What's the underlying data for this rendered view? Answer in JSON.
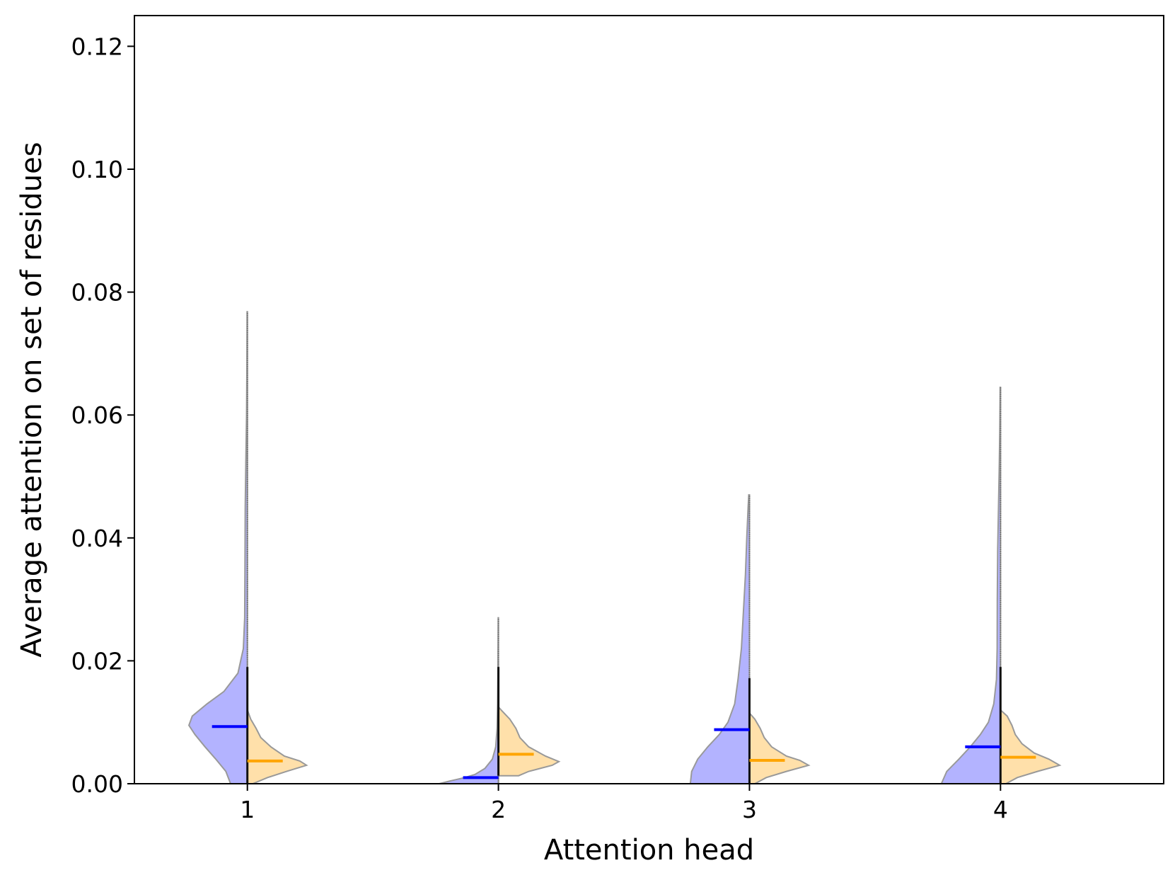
{
  "chart_data": {
    "type": "violin",
    "title": "",
    "xlabel": "Attention head",
    "ylabel": "Average attention on set of residues",
    "categories": [
      "1",
      "2",
      "3",
      "4"
    ],
    "ylim": [
      0,
      0.125
    ],
    "yticks": [
      "0.00",
      "0.02",
      "0.04",
      "0.06",
      "0.08",
      "0.10",
      "0.12"
    ],
    "grid": false,
    "legend": "none",
    "colors": {
      "left_fill": "#b3b3ff",
      "right_fill": "#ffe0aa",
      "left_median": "#0000ff",
      "right_median": "#ffa500",
      "outline": "#999999",
      "whisker": "#111111"
    },
    "violins": [
      {
        "category": "1",
        "left": {
          "min": 0.0,
          "max": 0.0768,
          "median": 0.0093,
          "profile": [
            [
              0.0,
              0.25
            ],
            [
              0.002,
              0.32
            ],
            [
              0.004,
              0.47
            ],
            [
              0.006,
              0.63
            ],
            [
              0.008,
              0.78
            ],
            [
              0.0095,
              0.87
            ],
            [
              0.011,
              0.82
            ],
            [
              0.013,
              0.6
            ],
            [
              0.015,
              0.35
            ],
            [
              0.018,
              0.14
            ],
            [
              0.022,
              0.06
            ],
            [
              0.027,
              0.04
            ],
            [
              0.035,
              0.036
            ],
            [
              0.045,
              0.032
            ],
            [
              0.053,
              0.022
            ],
            [
              0.06,
              0.012
            ],
            [
              0.068,
              0.007
            ],
            [
              0.0768,
              0.004
            ]
          ]
        },
        "right": {
          "min": 0.0,
          "max": 0.012,
          "median": 0.0037,
          "profile": [
            [
              0.0,
              0.08
            ],
            [
              0.001,
              0.3
            ],
            [
              0.002,
              0.58
            ],
            [
              0.003,
              0.88
            ],
            [
              0.0037,
              0.78
            ],
            [
              0.0045,
              0.55
            ],
            [
              0.006,
              0.35
            ],
            [
              0.0075,
              0.2
            ],
            [
              0.009,
              0.13
            ],
            [
              0.0105,
              0.05
            ],
            [
              0.012,
              0.0
            ]
          ]
        },
        "whisker": [
          0.0,
          0.019
        ]
      },
      {
        "category": "2",
        "left": {
          "min": 0.0,
          "max": 0.027,
          "median": 0.001,
          "profile": [
            [
              0.0,
              0.88
            ],
            [
              0.0005,
              0.7
            ],
            [
              0.001,
              0.5
            ],
            [
              0.0015,
              0.35
            ],
            [
              0.0025,
              0.2
            ],
            [
              0.004,
              0.09
            ],
            [
              0.006,
              0.04
            ],
            [
              0.009,
              0.02
            ],
            [
              0.013,
              0.012
            ],
            [
              0.018,
              0.008
            ],
            [
              0.023,
              0.005
            ],
            [
              0.027,
              0.003
            ]
          ]
        },
        "right": {
          "min": 0.0013,
          "max": 0.0125,
          "median": 0.0048,
          "profile": [
            [
              0.0013,
              0.3
            ],
            [
              0.002,
              0.45
            ],
            [
              0.003,
              0.8
            ],
            [
              0.0036,
              0.9
            ],
            [
              0.0045,
              0.7
            ],
            [
              0.006,
              0.45
            ],
            [
              0.0075,
              0.32
            ],
            [
              0.009,
              0.26
            ],
            [
              0.0105,
              0.17
            ],
            [
              0.012,
              0.04
            ],
            [
              0.0125,
              0.0
            ]
          ]
        },
        "whisker": [
          0.0013,
          0.019
        ]
      },
      {
        "category": "3",
        "left": {
          "min": 0.0,
          "max": 0.047,
          "median": 0.0088,
          "profile": [
            [
              0.0,
              0.88
            ],
            [
              0.002,
              0.86
            ],
            [
              0.004,
              0.77
            ],
            [
              0.006,
              0.62
            ],
            [
              0.008,
              0.45
            ],
            [
              0.01,
              0.32
            ],
            [
              0.013,
              0.22
            ],
            [
              0.017,
              0.17
            ],
            [
              0.022,
              0.12
            ],
            [
              0.028,
              0.09
            ],
            [
              0.034,
              0.06
            ],
            [
              0.04,
              0.04
            ],
            [
              0.045,
              0.02
            ],
            [
              0.047,
              0.01
            ]
          ]
        },
        "right": {
          "min": 0.0,
          "max": 0.0115,
          "median": 0.0038,
          "profile": [
            [
              0.0,
              0.08
            ],
            [
              0.001,
              0.25
            ],
            [
              0.002,
              0.55
            ],
            [
              0.003,
              0.88
            ],
            [
              0.0038,
              0.75
            ],
            [
              0.0045,
              0.55
            ],
            [
              0.006,
              0.33
            ],
            [
              0.0075,
              0.22
            ],
            [
              0.009,
              0.16
            ],
            [
              0.0105,
              0.08
            ],
            [
              0.0115,
              0.0
            ]
          ]
        },
        "whisker": [
          0.0,
          0.0172
        ]
      },
      {
        "category": "4",
        "left": {
          "min": 0.0,
          "max": 0.0645,
          "median": 0.006,
          "profile": [
            [
              0.0,
              0.88
            ],
            [
              0.002,
              0.8
            ],
            [
              0.004,
              0.62
            ],
            [
              0.006,
              0.45
            ],
            [
              0.008,
              0.3
            ],
            [
              0.01,
              0.18
            ],
            [
              0.013,
              0.1
            ],
            [
              0.017,
              0.06
            ],
            [
              0.022,
              0.05
            ],
            [
              0.03,
              0.048
            ],
            [
              0.038,
              0.042
            ],
            [
              0.045,
              0.03
            ],
            [
              0.052,
              0.018
            ],
            [
              0.058,
              0.01
            ],
            [
              0.0645,
              0.005
            ]
          ]
        },
        "right": {
          "min": 0.0,
          "max": 0.012,
          "median": 0.0043,
          "profile": [
            [
              0.0,
              0.08
            ],
            [
              0.001,
              0.25
            ],
            [
              0.002,
              0.55
            ],
            [
              0.003,
              0.88
            ],
            [
              0.004,
              0.72
            ],
            [
              0.005,
              0.5
            ],
            [
              0.0065,
              0.32
            ],
            [
              0.008,
              0.22
            ],
            [
              0.0095,
              0.17
            ],
            [
              0.011,
              0.1
            ],
            [
              0.012,
              0.0
            ]
          ]
        },
        "whisker": [
          0.0,
          0.019
        ]
      }
    ]
  }
}
